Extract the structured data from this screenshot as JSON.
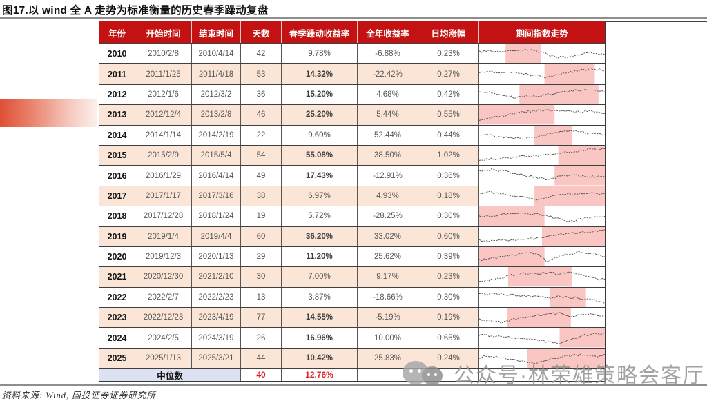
{
  "title": "图17.以 wind 全 A 走势为标准衡量的历史春季躁动复盘",
  "source_note": "资料来源: Wind, 国投证券证券研究所",
  "watermark": {
    "icon": "wechat-icon",
    "text": "公众号·林荣雄策略会客厅"
  },
  "colors": {
    "header_bg": "#c41212",
    "header_text": "#ffffff",
    "row_stripe": "#fbe5d7",
    "spark_highlight": "#f9c6c4",
    "spark_line": "#4c4c4c",
    "median_label_bg": "#dce2f1",
    "median_value_text": "#d92121",
    "accent_bar": "#df5340",
    "grid_border": "#3f3f3f",
    "body_text": "#575757"
  },
  "chart_data": {
    "type": "table",
    "title": "以wind全A走势为标准衡量的历史春季躁动复盘",
    "columns": [
      "年份",
      "开始时间",
      "结束时间",
      "天数",
      "春季躁动收益率",
      "全年收益率",
      "日均涨幅",
      "期间指数走势"
    ],
    "bold_rule": "春季躁动收益率 >= 10% 加粗",
    "rows": [
      {
        "year": "2010",
        "start": "2010/2/8",
        "end": "2010/4/14",
        "days": "42",
        "spring": "9.78%",
        "annual": "-6.88%",
        "daily": "0.23%",
        "spark": {
          "highlight": [
            0.21,
            0.49
          ],
          "shape": [
            0.38,
            0.3,
            0.42,
            0.28,
            0.22,
            0.3,
            0.55,
            0.72,
            0.62,
            0.5,
            0.42,
            0.55
          ]
        }
      },
      {
        "year": "2011",
        "start": "2011/1/25",
        "end": "2011/4/18",
        "days": "53",
        "spring": "14.32%",
        "annual": "-22.42%",
        "daily": "0.27%",
        "spark": {
          "highlight": [
            0.52,
            0.92
          ],
          "shape": [
            0.45,
            0.35,
            0.42,
            0.38,
            0.52,
            0.62,
            0.72,
            0.55,
            0.38,
            0.25,
            0.15,
            0.28
          ]
        }
      },
      {
        "year": "2012",
        "start": "2012/1/6",
        "end": "2012/3/2",
        "days": "36",
        "spring": "15.20%",
        "annual": "4.68%",
        "daily": "0.42%",
        "spark": {
          "highlight": [
            0.32,
            0.95
          ],
          "shape": [
            0.28,
            0.38,
            0.52,
            0.68,
            0.55,
            0.62,
            0.48,
            0.38,
            0.28,
            0.22,
            0.18,
            0.3
          ]
        }
      },
      {
        "year": "2013",
        "start": "2012/12/4",
        "end": "2013/2/8",
        "days": "46",
        "spring": "25.20%",
        "annual": "5.44%",
        "daily": "0.55%",
        "spark": {
          "highlight": [
            0.0,
            0.6
          ],
          "shape": [
            0.82,
            0.7,
            0.55,
            0.42,
            0.32,
            0.25,
            0.22,
            0.28,
            0.25,
            0.32,
            0.28,
            0.38
          ]
        }
      },
      {
        "year": "2014",
        "start": "2014/1/14",
        "end": "2014/2/19",
        "days": "22",
        "spring": "9.60%",
        "annual": "52.44%",
        "daily": "0.44%",
        "spark": {
          "highlight": [
            0.44,
            0.74
          ],
          "shape": [
            0.42,
            0.5,
            0.58,
            0.66,
            0.72,
            0.6,
            0.4,
            0.28,
            0.22,
            0.3,
            0.38,
            0.42
          ]
        }
      },
      {
        "year": "2015",
        "start": "2015/2/9",
        "end": "2015/5/4",
        "days": "54",
        "spring": "55.08%",
        "annual": "38.50%",
        "daily": "1.02%",
        "spark": {
          "highlight": [
            0.63,
            1.0
          ],
          "shape": [
            0.8,
            0.72,
            0.66,
            0.6,
            0.55,
            0.5,
            0.44,
            0.38,
            0.28,
            0.2,
            0.12,
            0.08
          ]
        }
      },
      {
        "year": "2016",
        "start": "2016/1/29",
        "end": "2016/4/14",
        "days": "49",
        "spring": "17.43%",
        "annual": "-12.91%",
        "daily": "0.36%",
        "spark": {
          "highlight": [
            0.6,
            1.0
          ],
          "shape": [
            0.18,
            0.14,
            0.24,
            0.34,
            0.48,
            0.64,
            0.76,
            0.58,
            0.5,
            0.55,
            0.58,
            0.62
          ]
        }
      },
      {
        "year": "2017",
        "start": "2017/1/17",
        "end": "2017/3/16",
        "days": "38",
        "spring": "6.97%",
        "annual": "4.93%",
        "daily": "0.18%",
        "spark": {
          "highlight": [
            0.44,
            1.0
          ],
          "shape": [
            0.3,
            0.26,
            0.38,
            0.48,
            0.58,
            0.72,
            0.58,
            0.46,
            0.38,
            0.34,
            0.3,
            0.34
          ]
        }
      },
      {
        "year": "2018",
        "start": "2017/12/28",
        "end": "2018/1/24",
        "days": "19",
        "spring": "5.72%",
        "annual": "-28.25%",
        "daily": "0.30%",
        "spark": {
          "highlight": [
            0.0,
            0.52
          ],
          "shape": [
            0.52,
            0.46,
            0.4,
            0.34,
            0.3,
            0.34,
            0.48,
            0.68,
            0.84,
            0.66,
            0.56,
            0.52
          ]
        }
      },
      {
        "year": "2019",
        "start": "2019/1/4",
        "end": "2019/4/4",
        "days": "60",
        "spring": "36.20%",
        "annual": "33.02%",
        "daily": "0.60%",
        "spark": {
          "highlight": [
            0.5,
            1.0
          ],
          "shape": [
            0.7,
            0.74,
            0.7,
            0.72,
            0.66,
            0.58,
            0.48,
            0.38,
            0.28,
            0.22,
            0.16,
            0.1
          ]
        }
      },
      {
        "year": "2020",
        "start": "2019/12/3",
        "end": "2020/1/13",
        "days": "29",
        "spring": "11.20%",
        "annual": "25.62%",
        "daily": "0.39%",
        "spark": {
          "highlight": [
            0.0,
            0.52
          ],
          "shape": [
            0.72,
            0.62,
            0.5,
            0.4,
            0.3,
            0.24,
            0.78,
            0.45,
            0.28,
            0.18,
            0.32,
            0.52
          ]
        }
      },
      {
        "year": "2021",
        "start": "2020/12/30",
        "end": "2021/2/10",
        "days": "30",
        "spring": "7.00%",
        "annual": "9.17%",
        "daily": "0.23%",
        "spark": {
          "highlight": [
            0.23,
            0.74
          ],
          "shape": [
            0.75,
            0.68,
            0.55,
            0.38,
            0.28,
            0.34,
            0.22,
            0.32,
            0.24,
            0.42,
            0.58,
            0.68
          ]
        }
      },
      {
        "year": "2022",
        "start": "2022/2/7",
        "end": "2022/2/23",
        "days": "13",
        "spring": "3.87%",
        "annual": "-18.66%",
        "daily": "0.30%",
        "spark": {
          "highlight": [
            0.56,
            0.85
          ],
          "shape": [
            0.28,
            0.26,
            0.3,
            0.34,
            0.38,
            0.44,
            0.5,
            0.44,
            0.48,
            0.54,
            0.68,
            0.8
          ]
        }
      },
      {
        "year": "2023",
        "start": "2022/12/23",
        "end": "2023/4/19",
        "days": "77",
        "spring": "14.55%",
        "annual": "-5.19%",
        "daily": "0.19%",
        "spark": {
          "highlight": [
            0.22,
            0.73
          ],
          "shape": [
            0.58,
            0.7,
            0.8,
            0.62,
            0.48,
            0.38,
            0.28,
            0.24,
            0.44,
            0.34,
            0.3,
            0.4
          ]
        }
      },
      {
        "year": "2024",
        "start": "2024/2/5",
        "end": "2024/3/19",
        "days": "26",
        "spring": "16.96%",
        "annual": "10.00%",
        "daily": "0.65%",
        "spark": {
          "highlight": [
            0.64,
            1.0
          ],
          "shape": [
            0.34,
            0.38,
            0.44,
            0.5,
            0.56,
            0.62,
            0.76,
            0.86,
            0.58,
            0.38,
            0.28,
            0.24
          ]
        }
      },
      {
        "year": "2025",
        "start": "2025/1/13",
        "end": "2025/3/21",
        "days": "44",
        "spring": "10.42%",
        "annual": "25.83%",
        "daily": "0.24%",
        "spark": {
          "highlight": [
            0.38,
            1.0
          ],
          "shape": [
            0.44,
            0.34,
            0.48,
            0.6,
            0.74,
            0.8,
            0.58,
            0.44,
            0.34,
            0.28,
            0.4,
            0.3
          ]
        }
      }
    ],
    "median": {
      "label": "中位数",
      "days": "40",
      "spring": "12.76%"
    }
  }
}
